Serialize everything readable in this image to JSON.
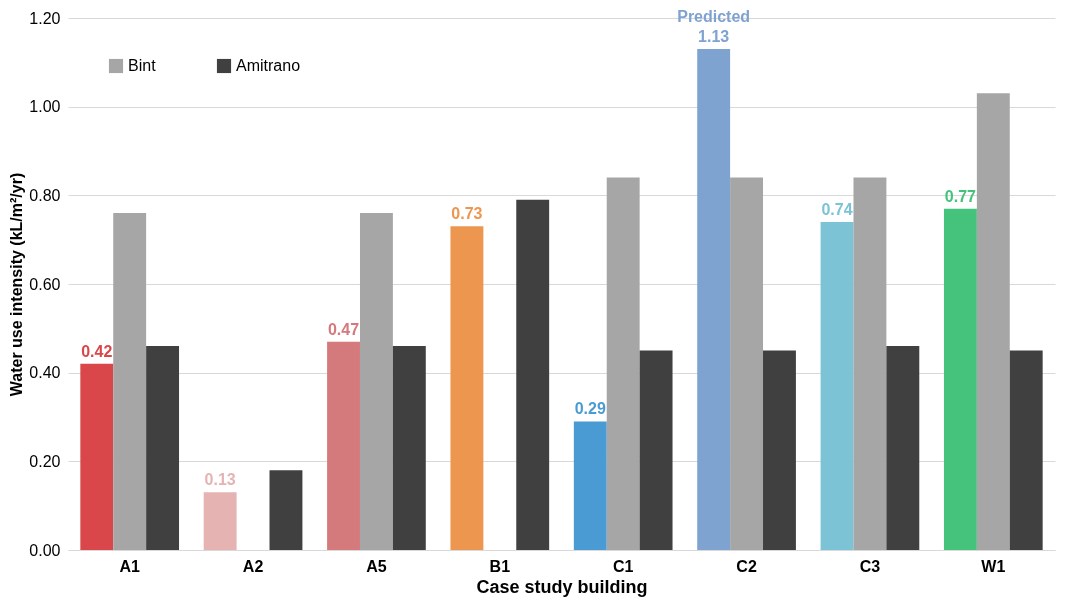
{
  "chart_data": {
    "type": "bar",
    "xlabel": "Case study building",
    "ylabel": "Water use intensity (kL/m²/yr)",
    "categories": [
      "A1",
      "A2",
      "A5",
      "B1",
      "C1",
      "C2",
      "C3",
      "W1"
    ],
    "series": [
      {
        "colors": [
          "#d9474a",
          "#e6b3b3",
          "#d47a7c",
          "#ec9650",
          "#4a9ad3",
          "#7fa3d1",
          "#7cc3d6",
          "#45c37c"
        ],
        "values": [
          0.42,
          0.13,
          0.47,
          0.73,
          0.29,
          1.13,
          0.74,
          0.77
        ],
        "value_labels": [
          "0.42",
          "0.13",
          "0.47",
          "0.73",
          "0.29",
          "1.13",
          "0.74",
          "0.77"
        ]
      },
      {
        "name": "Bint",
        "color": "#a6a6a6",
        "values": [
          0.76,
          null,
          0.76,
          null,
          0.84,
          0.84,
          0.84,
          1.03
        ]
      },
      {
        "name": "Amitrano",
        "color": "#404040",
        "values": [
          0.46,
          0.18,
          0.46,
          0.79,
          0.45,
          0.45,
          0.46,
          0.45
        ]
      }
    ],
    "annotations": [
      "Predicted"
    ],
    "ylim": [
      0,
      1.2
    ],
    "yticks": [
      {
        "value": 0,
        "label": "0.00"
      },
      {
        "value": 0.2,
        "label": "0.20"
      },
      {
        "value": 0.4,
        "label": "0.40"
      },
      {
        "value": 0.6,
        "label": "0.60"
      },
      {
        "value": 0.8,
        "label": "0.80"
      },
      {
        "value": 1,
        "label": "1.00"
      },
      {
        "value": 1.2,
        "label": "1.20"
      }
    ],
    "grid": "y",
    "legend": "top left"
  }
}
